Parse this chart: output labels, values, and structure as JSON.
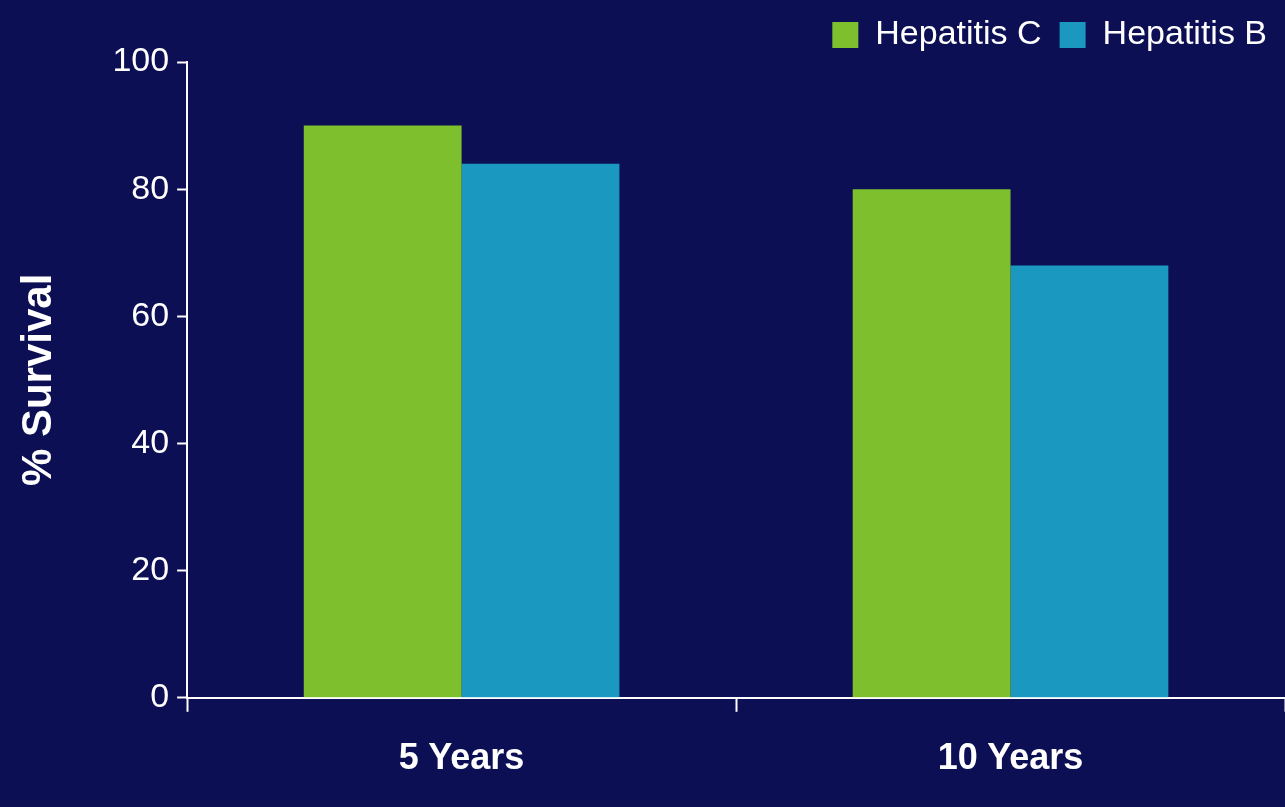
{
  "chart_data": {
    "type": "bar",
    "ylabel": "% Survival",
    "categories": [
      "5 Years",
      "10 Years"
    ],
    "series": [
      {
        "name": "Hepatitis C",
        "color": "#7dbf2c",
        "values": [
          90,
          80
        ]
      },
      {
        "name": "Hepatitis B",
        "color": "#1a98c0",
        "values": [
          84,
          68
        ]
      }
    ],
    "ylim": [
      0,
      100
    ],
    "yticks": [
      0,
      20,
      40,
      60,
      80,
      100
    ],
    "grid": false,
    "legend": "top right"
  }
}
